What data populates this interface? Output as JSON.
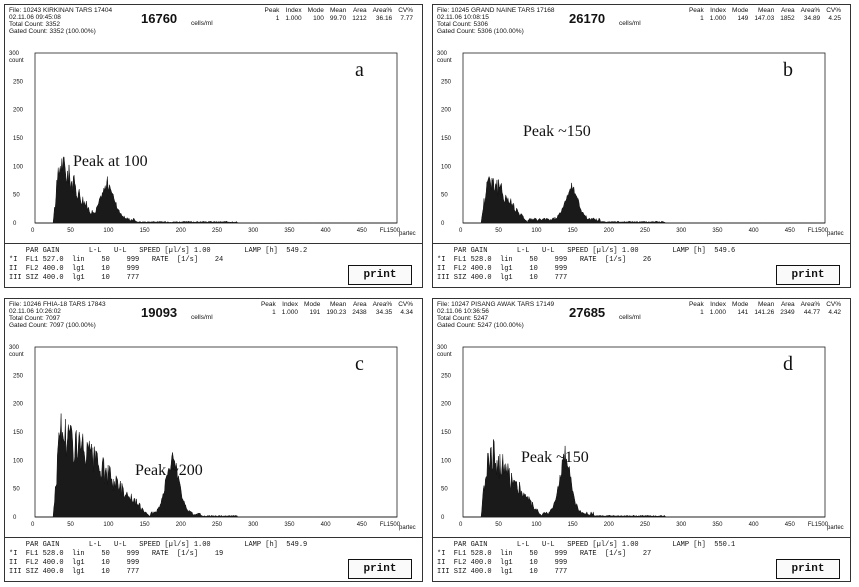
{
  "panels": [
    {
      "letter": "a",
      "file": "File: 10243 KIRKINAN TARS 17404",
      "datetime": "02.11.06 09:45:08",
      "total": "Total Count: 3352",
      "gated": "Gated Count: 3352",
      "gated_pct": "(100.00%)",
      "count_big": "16760",
      "units": "cells/ml",
      "stats": {
        "peak": "1",
        "index": "1.000",
        "mode": "100",
        "mean": "99.70",
        "area": "1212",
        "area_pct": "36.16",
        "cv": "7.77"
      },
      "annotation": "Peak at 100",
      "speed": "1.00",
      "rate": "24",
      "lamp": "549.2",
      "fl1_gain": "527.0"
    },
    {
      "letter": "b",
      "file": "File: 10245 GRAND NAINE TARS 17168",
      "datetime": "02.11.06 10:08:15",
      "total": "Total Count: 5306",
      "gated": "Gated Count: 5306",
      "gated_pct": "(100.00%)",
      "count_big": "26170",
      "units": "cells/ml",
      "stats": {
        "peak": "1",
        "index": "1.000",
        "mode": "149",
        "mean": "147.03",
        "area": "1852",
        "area_pct": "34.89",
        "cv": "4.25"
      },
      "annotation": "Peak ~150",
      "speed": "1.00",
      "rate": "26",
      "lamp": "549.6",
      "fl1_gain": "528.0"
    },
    {
      "letter": "c",
      "file": "File: 10246 FHIA-18 TARS 17843",
      "datetime": "02.11.06 10:26:02",
      "total": "Total Count: 7097",
      "gated": "Gated Count: 7097",
      "gated_pct": "(100.00%)",
      "count_big": "19093",
      "units": "cells/ml",
      "stats": {
        "peak": "1",
        "index": "1.000",
        "mode": "191",
        "mean": "190.23",
        "area": "2438",
        "area_pct": "34.35",
        "cv": "4.34"
      },
      "annotation": "Peak ~200",
      "speed": "1.00",
      "rate": "19",
      "lamp": "549.9",
      "fl1_gain": "528.0"
    },
    {
      "letter": "d",
      "file": "File: 10247 PISANG AWAK TARS 17149",
      "datetime": "02.11.06 10:36:56",
      "total": "Total Count: 5247",
      "gated": "Gated Count: 5247",
      "gated_pct": "(100.00%)",
      "count_big": "27685",
      "units": "cells/ml",
      "stats": {
        "peak": "1",
        "index": "1.000",
        "mode": "141",
        "mean": "141.26",
        "area": "2349",
        "area_pct": "44.77",
        "cv": "4.42"
      },
      "annotation": "Peak ~150",
      "speed": "1.00",
      "rate": "27",
      "lamp": "550.1",
      "fl1_gain": "528.0"
    }
  ],
  "stat_headers": {
    "peak": "Peak",
    "index": "Index",
    "mode": "Mode",
    "mean": "Mean",
    "area": "Area",
    "area_pct": "Area%",
    "cv": "CV%"
  },
  "axis": {
    "ylabel_top": "300",
    "ylabel_unit": "count",
    "yticks": [
      "250",
      "200",
      "150",
      "100",
      "50",
      "0"
    ],
    "xticks": [
      "0",
      "50",
      "100",
      "150",
      "200",
      "250",
      "300",
      "350",
      "400",
      "450"
    ],
    "xend": "FL1500",
    "xunit": "partec"
  },
  "settings": {
    "header": "PAR GAIN",
    "ll": "L-L",
    "ul": "U-L",
    "speed_label": "SPEED [µl/s]",
    "rate_label": "RATE  [1/s]",
    "lamp_label": "LAMP [h]",
    "row1_pre": "*I",
    "row1_par": "FL1",
    "row1_mode": "lin",
    "row1_ll": "50",
    "row1_ul": "999",
    "row2": "II  FL2 400.0  lg1    10    999",
    "row3": "III SIZ 400.0  lg1    10    777"
  },
  "print_label": "print"
}
